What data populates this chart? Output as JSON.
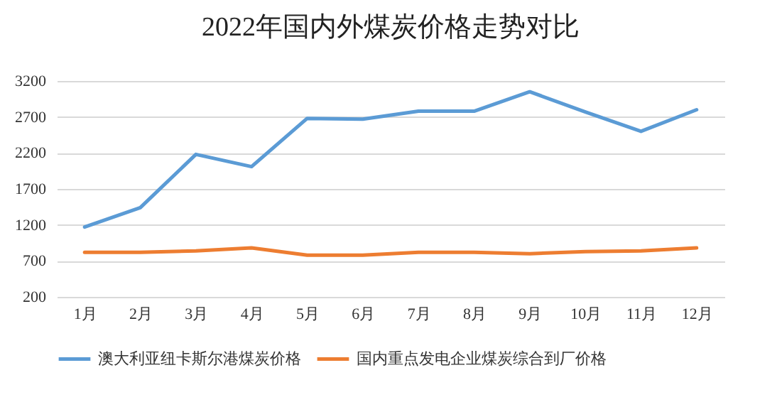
{
  "chart_data": {
    "type": "line",
    "title": "2022年国内外煤炭价格走势对比",
    "categories": [
      "1月",
      "2月",
      "3月",
      "4月",
      "5月",
      "6月",
      "7月",
      "8月",
      "9月",
      "10月",
      "11月",
      "12月"
    ],
    "series": [
      {
        "name": "澳大利亚纽卡斯尔港煤炭价格",
        "color": "#5b9bd5",
        "values": [
          1170,
          1440,
          2180,
          2010,
          2680,
          2670,
          2780,
          2780,
          3050,
          2770,
          2500,
          2800
        ]
      },
      {
        "name": "国内重点发电企业煤炭综合到厂价格",
        "color": "#ed7d31",
        "values": [
          820,
          820,
          840,
          880,
          780,
          780,
          820,
          820,
          800,
          830,
          840,
          880
        ]
      }
    ],
    "ylim": [
      200,
      3200
    ],
    "yticks": [
      200,
      700,
      1200,
      1700,
      2200,
      2700,
      3200
    ],
    "grid": "y",
    "legend": "bottom",
    "marker": "none",
    "line_style": "solid"
  }
}
